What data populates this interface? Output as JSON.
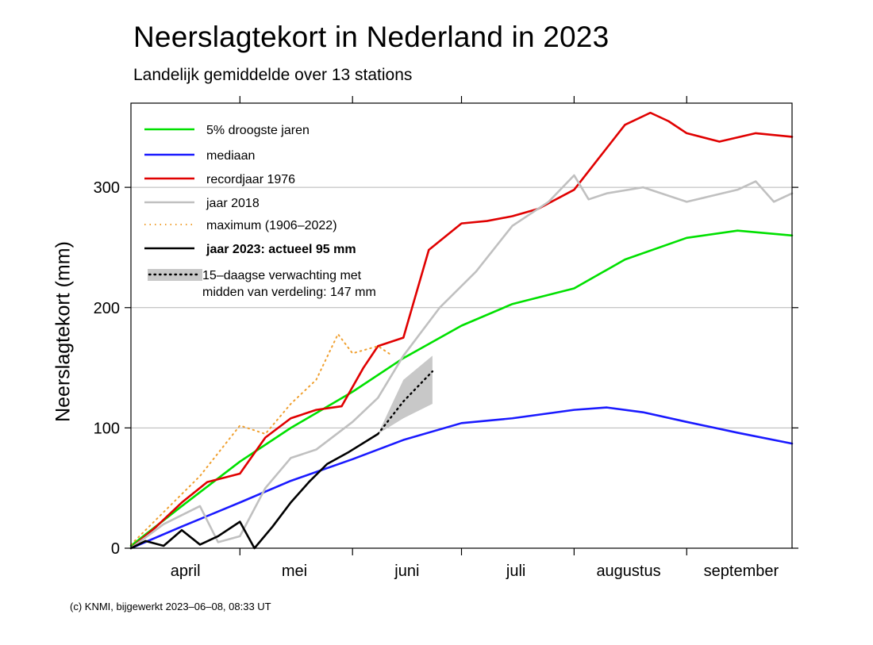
{
  "chart_data": {
    "type": "line",
    "title": "Neerslagtekort in Nederland in 2023",
    "subtitle": "Landelijk gemiddelde over 13 stations",
    "ylabel": "Neerslagtekort (mm)",
    "xlabel": "",
    "x_axis_type": "date",
    "xlim": [
      "2023-04-01",
      "2023-09-30"
    ],
    "ylim": [
      0,
      370
    ],
    "yticks": [
      0,
      100,
      200,
      300
    ],
    "month_labels": [
      {
        "label": "april",
        "date": "2023-04-16"
      },
      {
        "label": "mei",
        "date": "2023-05-16"
      },
      {
        "label": "juni",
        "date": "2023-06-16"
      },
      {
        "label": "juli",
        "date": "2023-07-16"
      },
      {
        "label": "augustus",
        "date": "2023-08-16"
      },
      {
        "label": "september",
        "date": "2023-09-16"
      }
    ],
    "month_boundaries": [
      "2023-05-01",
      "2023-06-01",
      "2023-07-01",
      "2023-08-01",
      "2023-09-01"
    ],
    "grid": "horizontal",
    "legend_position": "top-left",
    "series": [
      {
        "name": "5% droogste jaren",
        "color": "#00e000",
        "style": "solid",
        "x": [
          "2023-04-01",
          "2023-04-15",
          "2023-05-01",
          "2023-05-15",
          "2023-06-01",
          "2023-06-15",
          "2023-07-01",
          "2023-07-15",
          "2023-08-01",
          "2023-08-15",
          "2023-09-01",
          "2023-09-15",
          "2023-09-30"
        ],
        "y": [
          2,
          35,
          72,
          100,
          130,
          158,
          185,
          203,
          216,
          240,
          258,
          264,
          260
        ]
      },
      {
        "name": "mediaan",
        "color": "#1a1aff",
        "style": "solid",
        "x": [
          "2023-04-01",
          "2023-04-15",
          "2023-05-01",
          "2023-05-15",
          "2023-06-01",
          "2023-06-15",
          "2023-07-01",
          "2023-07-15",
          "2023-08-01",
          "2023-08-10",
          "2023-08-20",
          "2023-09-01",
          "2023-09-15",
          "2023-09-30"
        ],
        "y": [
          0,
          18,
          38,
          56,
          74,
          90,
          104,
          108,
          115,
          117,
          113,
          105,
          96,
          87
        ]
      },
      {
        "name": "recordjaar 1976",
        "color": "#e00000",
        "style": "solid",
        "x": [
          "2023-04-01",
          "2023-04-08",
          "2023-04-15",
          "2023-04-22",
          "2023-05-01",
          "2023-05-08",
          "2023-05-15",
          "2023-05-22",
          "2023-05-29",
          "2023-06-04",
          "2023-06-08",
          "2023-06-15",
          "2023-06-22",
          "2023-07-01",
          "2023-07-08",
          "2023-07-15",
          "2023-07-22",
          "2023-08-01",
          "2023-08-08",
          "2023-08-15",
          "2023-08-22",
          "2023-08-27",
          "2023-09-01",
          "2023-09-10",
          "2023-09-20",
          "2023-09-30"
        ],
        "y": [
          0,
          18,
          38,
          55,
          62,
          92,
          108,
          115,
          118,
          150,
          168,
          175,
          248,
          270,
          272,
          276,
          282,
          298,
          325,
          352,
          362,
          355,
          345,
          338,
          345,
          342
        ]
      },
      {
        "name": "jaar 2018",
        "color": "#c0c0c0",
        "style": "solid",
        "x": [
          "2023-04-01",
          "2023-04-10",
          "2023-04-20",
          "2023-04-25",
          "2023-05-01",
          "2023-05-08",
          "2023-05-15",
          "2023-05-22",
          "2023-06-01",
          "2023-06-08",
          "2023-06-15",
          "2023-06-25",
          "2023-07-05",
          "2023-07-15",
          "2023-07-25",
          "2023-08-01",
          "2023-08-05",
          "2023-08-10",
          "2023-08-20",
          "2023-09-01",
          "2023-09-15",
          "2023-09-20",
          "2023-09-25",
          "2023-09-30"
        ],
        "y": [
          0,
          20,
          35,
          5,
          10,
          50,
          75,
          82,
          105,
          125,
          160,
          200,
          230,
          268,
          288,
          310,
          290,
          295,
          300,
          288,
          298,
          305,
          288,
          295
        ]
      },
      {
        "name": "maximum (1906–2022)",
        "color": "#f0a030",
        "style": "dotted",
        "x": [
          "2023-04-01",
          "2023-04-10",
          "2023-04-20",
          "2023-05-01",
          "2023-05-08",
          "2023-05-15",
          "2023-05-22",
          "2023-05-28",
          "2023-06-01",
          "2023-06-08",
          "2023-06-12"
        ],
        "y": [
          3,
          30,
          60,
          102,
          95,
          120,
          140,
          178,
          162,
          168,
          160
        ]
      },
      {
        "name": "jaar 2023: actueel 95 mm",
        "color": "#000000",
        "style": "solid",
        "x": [
          "2023-04-01",
          "2023-04-05",
          "2023-04-10",
          "2023-04-15",
          "2023-04-20",
          "2023-04-25",
          "2023-05-01",
          "2023-05-05",
          "2023-05-10",
          "2023-05-15",
          "2023-05-20",
          "2023-05-25",
          "2023-05-31",
          "2023-06-08"
        ],
        "y": [
          0,
          6,
          2,
          15,
          3,
          10,
          22,
          0,
          18,
          38,
          55,
          70,
          80,
          95
        ]
      }
    ],
    "forecast": {
      "name": "15–daagse verwachting met",
      "name_line2": "midden van verdeling: 147 mm",
      "color": "#000000",
      "band_color": "#c8c8c8",
      "x": [
        "2023-06-08",
        "2023-06-15",
        "2023-06-23"
      ],
      "median": [
        95,
        122,
        147
      ],
      "lower": [
        95,
        108,
        120
      ],
      "upper": [
        95,
        140,
        160
      ]
    }
  },
  "copyright": "(c) KNMI, bijgewerkt 2023–06–08, 08:33 UT"
}
